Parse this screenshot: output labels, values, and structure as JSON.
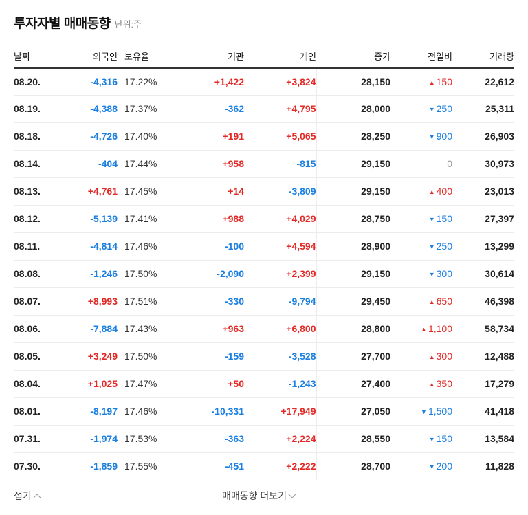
{
  "header": {
    "title": "투자자별 매매동향",
    "unit": "단위:주"
  },
  "table": {
    "columns": {
      "date": "날짜",
      "foreign": "외국인",
      "ratio": "보유율",
      "institution": "기관",
      "individual": "개인",
      "close": "종가",
      "change": "전일비",
      "volume": "거래량"
    },
    "rows": [
      {
        "date": "08.20.",
        "foreign": "-4,316",
        "ratio": "17.22%",
        "institution": "+1,422",
        "individual": "+3,824",
        "close": "28,150",
        "change": "150",
        "change_dir": "up",
        "volume": "22,612"
      },
      {
        "date": "08.19.",
        "foreign": "-4,388",
        "ratio": "17.37%",
        "institution": "-362",
        "individual": "+4,795",
        "close": "28,000",
        "change": "250",
        "change_dir": "down",
        "volume": "25,311"
      },
      {
        "date": "08.18.",
        "foreign": "-4,726",
        "ratio": "17.40%",
        "institution": "+191",
        "individual": "+5,065",
        "close": "28,250",
        "change": "900",
        "change_dir": "down",
        "volume": "26,903"
      },
      {
        "date": "08.14.",
        "foreign": "-404",
        "ratio": "17.44%",
        "institution": "+958",
        "individual": "-815",
        "close": "29,150",
        "change": "0",
        "change_dir": "flat",
        "volume": "30,973"
      },
      {
        "date": "08.13.",
        "foreign": "+4,761",
        "ratio": "17.45%",
        "institution": "+14",
        "individual": "-3,809",
        "close": "29,150",
        "change": "400",
        "change_dir": "up",
        "volume": "23,013"
      },
      {
        "date": "08.12.",
        "foreign": "-5,139",
        "ratio": "17.41%",
        "institution": "+988",
        "individual": "+4,029",
        "close": "28,750",
        "change": "150",
        "change_dir": "down",
        "volume": "27,397"
      },
      {
        "date": "08.11.",
        "foreign": "-4,814",
        "ratio": "17.46%",
        "institution": "-100",
        "individual": "+4,594",
        "close": "28,900",
        "change": "250",
        "change_dir": "down",
        "volume": "13,299"
      },
      {
        "date": "08.08.",
        "foreign": "-1,246",
        "ratio": "17.50%",
        "institution": "-2,090",
        "individual": "+2,399",
        "close": "29,150",
        "change": "300",
        "change_dir": "down",
        "volume": "30,614"
      },
      {
        "date": "08.07.",
        "foreign": "+8,993",
        "ratio": "17.51%",
        "institution": "-330",
        "individual": "-9,794",
        "close": "29,450",
        "change": "650",
        "change_dir": "up",
        "volume": "46,398"
      },
      {
        "date": "08.06.",
        "foreign": "-7,884",
        "ratio": "17.43%",
        "institution": "+963",
        "individual": "+6,800",
        "close": "28,800",
        "change": "1,100",
        "change_dir": "up",
        "volume": "58,734"
      },
      {
        "date": "08.05.",
        "foreign": "+3,249",
        "ratio": "17.50%",
        "institution": "-159",
        "individual": "-3,528",
        "close": "27,700",
        "change": "300",
        "change_dir": "up",
        "volume": "12,488"
      },
      {
        "date": "08.04.",
        "foreign": "+1,025",
        "ratio": "17.47%",
        "institution": "+50",
        "individual": "-1,243",
        "close": "27,400",
        "change": "350",
        "change_dir": "up",
        "volume": "17,279"
      },
      {
        "date": "08.01.",
        "foreign": "-8,197",
        "ratio": "17.46%",
        "institution": "-10,331",
        "individual": "+17,949",
        "close": "27,050",
        "change": "1,500",
        "change_dir": "down",
        "volume": "41,418"
      },
      {
        "date": "07.31.",
        "foreign": "-1,974",
        "ratio": "17.53%",
        "institution": "-363",
        "individual": "+2,224",
        "close": "28,550",
        "change": "150",
        "change_dir": "down",
        "volume": "13,584"
      },
      {
        "date": "07.30.",
        "foreign": "-1,859",
        "ratio": "17.55%",
        "institution": "-451",
        "individual": "+2,222",
        "close": "28,700",
        "change": "200",
        "change_dir": "down",
        "volume": "11,828"
      }
    ]
  },
  "footer": {
    "fold_label": "접기",
    "more_label": "매매동향 더보기"
  },
  "icons": {
    "up_triangle": "▲",
    "down_triangle": "▼",
    "fold_icon": "chevron-up-icon",
    "more_icon": "chevron-down-icon"
  },
  "colors": {
    "positive": "#e22926",
    "negative": "#1a7fe0",
    "neutral": "#999999",
    "text": "#222222"
  }
}
